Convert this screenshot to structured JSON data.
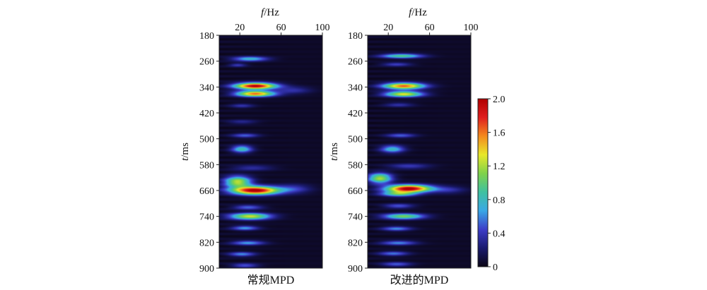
{
  "chart_data": [
    {
      "type": "heatmap",
      "caption": "常规MPD",
      "xlabel_italic": "f",
      "xlabel_unit": "/Hz",
      "ylabel_italic": "t",
      "ylabel_unit": "/ms",
      "x_ticks": [
        "20",
        "60",
        "100"
      ],
      "y_ticks": [
        "180",
        "260",
        "340",
        "420",
        "500",
        "580",
        "660",
        "740",
        "820",
        "900"
      ],
      "xlim": [
        0,
        100
      ],
      "ylim": [
        180,
        900
      ],
      "blobs": [
        {
          "x": 30,
          "y": 253,
          "amp": 0.75,
          "sx": 12,
          "sy": 5
        },
        {
          "x": 18,
          "y": 272,
          "amp": 0.35,
          "sx": 6,
          "sy": 4
        },
        {
          "x": 35,
          "y": 337,
          "amp": 1.95,
          "sx": 14,
          "sy": 7
        },
        {
          "x": 35,
          "y": 361,
          "amp": 1.6,
          "sx": 13,
          "sy": 6
        },
        {
          "x": 72,
          "y": 350,
          "amp": 0.3,
          "sx": 12,
          "sy": 8
        },
        {
          "x": 22,
          "y": 398,
          "amp": 0.3,
          "sx": 8,
          "sy": 5
        },
        {
          "x": 22,
          "y": 448,
          "amp": 0.25,
          "sx": 10,
          "sy": 5
        },
        {
          "x": 25,
          "y": 490,
          "amp": 0.45,
          "sx": 9,
          "sy": 5
        },
        {
          "x": 22,
          "y": 532,
          "amp": 0.8,
          "sx": 7,
          "sy": 8
        },
        {
          "x": 32,
          "y": 590,
          "amp": 0.3,
          "sx": 14,
          "sy": 6
        },
        {
          "x": 18,
          "y": 633,
          "amp": 1.2,
          "sx": 9,
          "sy": 12
        },
        {
          "x": 35,
          "y": 660,
          "amp": 2.0,
          "sx": 16,
          "sy": 9
        },
        {
          "x": 72,
          "y": 655,
          "amp": 0.35,
          "sx": 12,
          "sy": 10
        },
        {
          "x": 28,
          "y": 712,
          "amp": 0.5,
          "sx": 10,
          "sy": 5
        },
        {
          "x": 30,
          "y": 740,
          "amp": 1.25,
          "sx": 14,
          "sy": 7
        },
        {
          "x": 25,
          "y": 776,
          "amp": 0.6,
          "sx": 9,
          "sy": 5
        },
        {
          "x": 28,
          "y": 822,
          "amp": 0.6,
          "sx": 11,
          "sy": 5
        },
        {
          "x": 22,
          "y": 857,
          "amp": 0.55,
          "sx": 9,
          "sy": 5
        },
        {
          "x": 25,
          "y": 892,
          "amp": 0.45,
          "sx": 9,
          "sy": 5
        }
      ]
    },
    {
      "type": "heatmap",
      "caption": "改进的MPD",
      "xlabel_italic": "f",
      "xlabel_unit": "/Hz",
      "ylabel_italic": "t",
      "ylabel_unit": "/ms",
      "x_ticks": [
        "20",
        "60",
        "100"
      ],
      "y_ticks": [
        "180",
        "260",
        "340",
        "420",
        "500",
        "580",
        "660",
        "740",
        "820",
        "900"
      ],
      "xlim": [
        0,
        100
      ],
      "ylim": [
        180,
        900
      ],
      "blobs": [
        {
          "x": 33,
          "y": 244,
          "amp": 0.9,
          "sx": 14,
          "sy": 5
        },
        {
          "x": 28,
          "y": 270,
          "amp": 0.4,
          "sx": 10,
          "sy": 4
        },
        {
          "x": 35,
          "y": 337,
          "amp": 1.6,
          "sx": 14,
          "sy": 7
        },
        {
          "x": 35,
          "y": 362,
          "amp": 1.3,
          "sx": 13,
          "sy": 6
        },
        {
          "x": 30,
          "y": 395,
          "amp": 0.3,
          "sx": 10,
          "sy": 5
        },
        {
          "x": 32,
          "y": 490,
          "amp": 0.45,
          "sx": 10,
          "sy": 5
        },
        {
          "x": 24,
          "y": 532,
          "amp": 0.75,
          "sx": 8,
          "sy": 8
        },
        {
          "x": 40,
          "y": 585,
          "amp": 0.35,
          "sx": 14,
          "sy": 6
        },
        {
          "x": 12,
          "y": 622,
          "amp": 1.15,
          "sx": 8,
          "sy": 11
        },
        {
          "x": 40,
          "y": 654,
          "amp": 2.0,
          "sx": 15,
          "sy": 8
        },
        {
          "x": 30,
          "y": 670,
          "amp": 0.9,
          "sx": 12,
          "sy": 6
        },
        {
          "x": 78,
          "y": 658,
          "amp": 0.3,
          "sx": 12,
          "sy": 8
        },
        {
          "x": 30,
          "y": 708,
          "amp": 0.45,
          "sx": 10,
          "sy": 5
        },
        {
          "x": 35,
          "y": 740,
          "amp": 1.05,
          "sx": 14,
          "sy": 6
        },
        {
          "x": 28,
          "y": 778,
          "amp": 0.55,
          "sx": 10,
          "sy": 5
        },
        {
          "x": 30,
          "y": 822,
          "amp": 0.55,
          "sx": 12,
          "sy": 5
        },
        {
          "x": 25,
          "y": 855,
          "amp": 0.5,
          "sx": 10,
          "sy": 5
        },
        {
          "x": 28,
          "y": 888,
          "amp": 0.45,
          "sx": 10,
          "sy": 5
        }
      ]
    }
  ],
  "colorbar": {
    "min": 0,
    "max": 2.0,
    "tick_labels": [
      "0",
      "0.4",
      "0.8",
      "1.2",
      "1.6",
      "2.0"
    ],
    "stops": [
      "#0a0514",
      "#1a1a6e",
      "#3d3dc8",
      "#3aa8e6",
      "#3fc1a0",
      "#7fd24a",
      "#e8e82a",
      "#f48a1e",
      "#e01e1e",
      "#b00000"
    ]
  }
}
